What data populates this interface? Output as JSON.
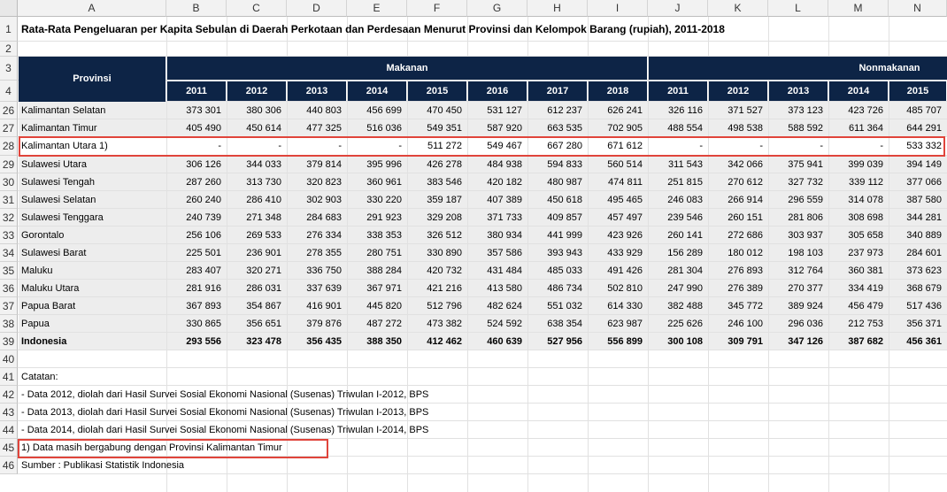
{
  "columns": [
    "A",
    "B",
    "C",
    "D",
    "E",
    "F",
    "G",
    "H",
    "I",
    "J",
    "K",
    "L",
    "M",
    "N"
  ],
  "rows": [
    "1",
    "2",
    "3",
    "4",
    "26",
    "27",
    "28",
    "29",
    "30",
    "31",
    "32",
    "33",
    "34",
    "35",
    "36",
    "37",
    "38",
    "39",
    "40",
    "41",
    "42",
    "43",
    "44",
    "45",
    "46"
  ],
  "title": "Rata-Rata Pengeluaran per Kapita Sebulan di Daerah Perkotaan dan Perdesaan Menurut Provinsi dan Kelompok Barang (rupiah), 2011-2018",
  "header": {
    "provinsi": "Provinsi",
    "makanan": "Makanan",
    "nonmakanan": "Nonmakanan",
    "years_makanan": [
      "2011",
      "2012",
      "2013",
      "2014",
      "2015",
      "2016",
      "2017",
      "2018"
    ],
    "years_nonmakanan": [
      "2011",
      "2012",
      "2013",
      "2014",
      "2015"
    ]
  },
  "table": [
    {
      "name": "Kalimantan Selatan",
      "vals": [
        "373 301",
        "380 306",
        "440 803",
        "456 699",
        "470 450",
        "531 127",
        "612 237",
        "626 241",
        "326 116",
        "371 527",
        "373 123",
        "423 726",
        "485 707"
      ]
    },
    {
      "name": "Kalimantan Timur",
      "vals": [
        "405 490",
        "450 614",
        "477 325",
        "516 036",
        "549 351",
        "587 920",
        "663 535",
        "702 905",
        "488 554",
        "498 538",
        "588 592",
        "611 364",
        "644 291"
      ]
    },
    {
      "name": "Kalimantan Utara 1)",
      "vals": [
        "-",
        "-",
        "-",
        "-",
        "511 272",
        "549 467",
        "667 280",
        "671 612",
        "-",
        "-",
        "-",
        "-",
        "533 332"
      ]
    },
    {
      "name": "Sulawesi Utara",
      "vals": [
        "306 126",
        "344 033",
        "379 814",
        "395 996",
        "426 278",
        "484 938",
        "594 833",
        "560 514",
        "311 543",
        "342 066",
        "375 941",
        "399 039",
        "394 149"
      ]
    },
    {
      "name": "Sulawesi Tengah",
      "vals": [
        "287 260",
        "313 730",
        "320 823",
        "360 961",
        "383 546",
        "420 182",
        "480 987",
        "474 811",
        "251 815",
        "270 612",
        "327 732",
        "339 112",
        "377 066"
      ]
    },
    {
      "name": "Sulawesi Selatan",
      "vals": [
        "260 240",
        "286 410",
        "302 903",
        "330 220",
        "359 187",
        "407 389",
        "450 618",
        "495 465",
        "246 083",
        "266 914",
        "296 559",
        "314 078",
        "387 580"
      ]
    },
    {
      "name": "Sulawesi Tenggara",
      "vals": [
        "240 739",
        "271 348",
        "284 683",
        "291 923",
        "329 208",
        "371 733",
        "409 857",
        "457 497",
        "239 546",
        "260 151",
        "281 806",
        "308 698",
        "344 281"
      ]
    },
    {
      "name": "Gorontalo",
      "vals": [
        "256 106",
        "269 533",
        "276 334",
        "338 353",
        "326 512",
        "380 934",
        "441 999",
        "423 926",
        "260 141",
        "272 686",
        "303 937",
        "305 658",
        "340 889"
      ]
    },
    {
      "name": "Sulawesi Barat",
      "vals": [
        "225 501",
        "236 901",
        "278 355",
        "280 751",
        "330 890",
        "357 586",
        "393 943",
        "433 929",
        "156 289",
        "180 012",
        "198 103",
        "237 973",
        "284 601"
      ]
    },
    {
      "name": "Maluku",
      "vals": [
        "283 407",
        "320 271",
        "336 750",
        "388 284",
        "420 732",
        "431 484",
        "485 033",
        "491 426",
        "281 304",
        "276 893",
        "312 764",
        "360 381",
        "373 623"
      ]
    },
    {
      "name": "Maluku Utara",
      "vals": [
        "281 916",
        "286 031",
        "337 639",
        "367 971",
        "421 216",
        "413 580",
        "486 734",
        "502 810",
        "247 990",
        "276 389",
        "270 377",
        "334 419",
        "368 679"
      ]
    },
    {
      "name": "Papua Barat",
      "vals": [
        "367 893",
        "354 867",
        "416 901",
        "445 820",
        "512 796",
        "482 624",
        "551 032",
        "614 330",
        "382 488",
        "345 772",
        "389 924",
        "456 479",
        "517 436"
      ]
    },
    {
      "name": "Papua",
      "vals": [
        "330 865",
        "356 651",
        "379 876",
        "487 272",
        "473 382",
        "524 592",
        "638 354",
        "623 987",
        "225 626",
        "246 100",
        "296 036",
        "212 753",
        "356 371"
      ]
    },
    {
      "name": "Indonesia",
      "vals": [
        "293 556",
        "323 478",
        "356 435",
        "388 350",
        "412 462",
        "460 639",
        "527 956",
        "556 899",
        "300 108",
        "309 791",
        "347 126",
        "387 682",
        "456 361"
      ]
    }
  ],
  "notes": {
    "catatan": "Catatan:",
    "n1": " - Data 2012, diolah dari Hasil Survei Sosial Ekonomi Nasional (Susenas) Triwulan I-2012, BPS",
    "n2": " - Data 2013, diolah dari Hasil Survei Sosial Ekonomi Nasional (Susenas) Triwulan I-2013, BPS",
    "n3": " - Data 2014, diolah dari Hasil Survei Sosial Ekonomi Nasional (Susenas) Triwulan I-2014, BPS",
    "footnote": "1) Data masih bergabung dengan Provinsi Kalimantan Timur",
    "sumber": "Sumber : Publikasi Statistik Indonesia"
  },
  "colors": {
    "header_fill": "#0d2446",
    "highlight": "#e0443b",
    "band": "#e8e8e8"
  }
}
